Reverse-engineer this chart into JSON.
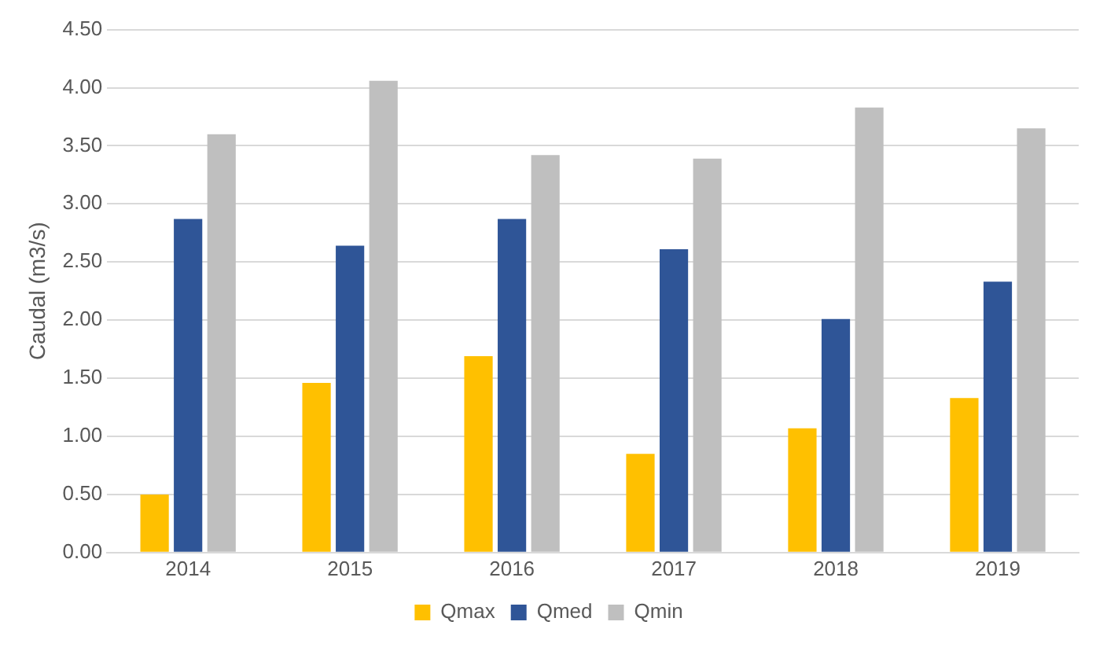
{
  "chart_data": {
    "type": "bar",
    "ylabel": "Caudal (m3/s)",
    "categories": [
      "2014",
      "2015",
      "2016",
      "2017",
      "2018",
      "2019"
    ],
    "series": [
      {
        "name": "Qmax",
        "color": "#ffc000",
        "values": [
          0.5,
          1.46,
          1.69,
          0.85,
          1.07,
          1.33
        ]
      },
      {
        "name": "Qmed",
        "color": "#2f5597",
        "values": [
          2.87,
          2.64,
          2.87,
          2.61,
          2.01,
          2.33
        ]
      },
      {
        "name": "Qmin",
        "color": "#bfbfbf",
        "values": [
          3.6,
          4.06,
          3.42,
          3.39,
          3.83,
          3.65
        ]
      }
    ],
    "ylim": [
      0,
      4.5
    ],
    "yticks": [
      {
        "value": 0,
        "label": "0.00"
      },
      {
        "value": 0.5,
        "label": "0.50"
      },
      {
        "value": 1,
        "label": "1.00"
      },
      {
        "value": 1.5,
        "label": "1.50"
      },
      {
        "value": 2,
        "label": "2.00"
      },
      {
        "value": 2.5,
        "label": "2.50"
      },
      {
        "value": 3,
        "label": "3.00"
      },
      {
        "value": 3.5,
        "label": "3.50"
      },
      {
        "value": 4,
        "label": "4.00"
      },
      {
        "value": 4.5,
        "label": "4.50"
      }
    ],
    "grid": "y",
    "legend": "bottom"
  }
}
